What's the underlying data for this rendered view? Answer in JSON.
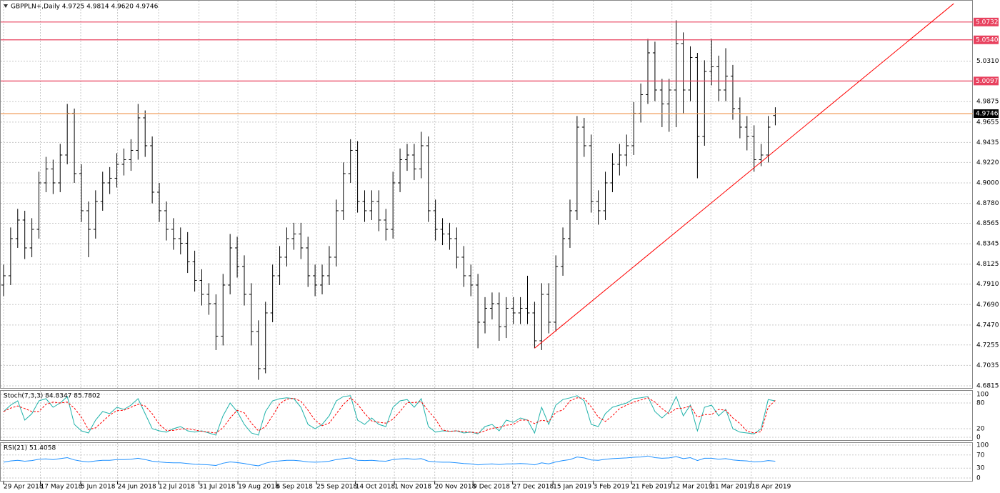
{
  "chart_data": [
    {
      "type": "ohlc",
      "title": "GBPPLN+,Daily  4.9725 4.9814 4.9620 4.9746",
      "color": "#000000",
      "xlim": [
        -0.5,
        136.9
      ],
      "ylim": [
        4.6792,
        5.0969
      ],
      "xticks": [
        {
          "value": 0,
          "label": "29 Apr 2018"
        },
        {
          "value": 5.2,
          "label": "17 May 2018"
        },
        {
          "value": 10.9,
          "label": "5 Jun 2018"
        },
        {
          "value": 16.1,
          "label": "24 Jun 2018"
        },
        {
          "value": 21.9,
          "label": "12 Jul 2018"
        },
        {
          "value": 27.6,
          "label": "31 Jul 2018"
        },
        {
          "value": 33.1,
          "label": "19 Aug 2018"
        },
        {
          "value": 38.5,
          "label": "6 Sep 2018"
        },
        {
          "value": 44.2,
          "label": "25 Sep 2018"
        },
        {
          "value": 49.7,
          "label": "14 Oct 2018"
        },
        {
          "value": 55.2,
          "label": "1 Nov 2018"
        },
        {
          "value": 60.9,
          "label": "20 Nov 2018"
        },
        {
          "value": 66.3,
          "label": "9 Dec 2018"
        },
        {
          "value": 71.9,
          "label": "27 Dec 2018"
        },
        {
          "value": 77.6,
          "label": "15 Jan 2019"
        },
        {
          "value": 83.3,
          "label": "3 Feb 2019"
        },
        {
          "value": 88.7,
          "label": "21 Feb 2019"
        },
        {
          "value": 94.4,
          "label": "12 Mar 2019"
        },
        {
          "value": 99.9,
          "label": "31 Mar 2019"
        },
        {
          "value": 105.6,
          "label": "18 Apr 2019"
        }
      ],
      "yticks": [
        {
          "value": 5.031,
          "label": "5.0310"
        },
        {
          "value": 4.9875,
          "label": "4.9875"
        },
        {
          "value": 4.9655,
          "label": "4.9655"
        },
        {
          "value": 4.9435,
          "label": "4.9435"
        },
        {
          "value": 4.922,
          "label": "4.9220"
        },
        {
          "value": 4.9,
          "label": "4.9000"
        },
        {
          "value": 4.878,
          "label": "4.8780"
        },
        {
          "value": 4.8565,
          "label": "4.8565"
        },
        {
          "value": 4.8345,
          "label": "4.8345"
        },
        {
          "value": 4.8125,
          "label": "4.8125"
        },
        {
          "value": 4.791,
          "label": "4.7910"
        },
        {
          "value": 4.769,
          "label": "4.7690"
        },
        {
          "value": 4.747,
          "label": "4.7470"
        },
        {
          "value": 4.7255,
          "label": "4.7255"
        },
        {
          "value": 4.7035,
          "label": "4.7035"
        },
        {
          "value": 4.6815,
          "label": "4.6815"
        }
      ],
      "grid": true,
      "open": [
        4.79,
        4.8,
        4.84,
        4.86,
        4.83,
        4.85,
        4.9,
        4.915,
        4.9,
        4.93,
        4.975,
        4.91,
        4.87,
        4.85,
        4.88,
        4.9,
        4.905,
        4.92,
        4.925,
        4.935,
        4.97,
        4.94,
        4.89,
        4.87,
        4.85,
        4.84,
        4.835,
        4.815,
        4.795,
        4.78,
        4.77,
        4.735,
        4.79,
        4.83,
        4.81,
        4.78,
        4.74,
        4.7,
        4.76,
        4.8,
        4.82,
        4.84,
        4.845,
        4.83,
        4.8,
        4.79,
        4.8,
        4.82,
        4.87,
        4.91,
        4.935,
        4.88,
        4.87,
        4.88,
        4.86,
        4.85,
        4.9,
        4.925,
        4.93,
        4.915,
        4.94,
        4.87,
        4.85,
        4.845,
        4.84,
        4.82,
        4.8,
        4.79,
        4.75,
        4.765,
        4.77,
        4.745,
        4.765,
        4.76,
        4.765,
        4.76,
        4.73,
        4.78,
        4.75,
        4.81,
        4.84,
        4.87,
        4.96,
        4.94,
        4.88,
        4.87,
        4.9,
        4.92,
        4.93,
        4.94,
        4.975,
        4.995,
        5.04,
        5.0,
        4.985,
        5.0,
        5.05,
        5.0,
        5.035,
        4.95,
        5.02,
        5.025,
        5.0,
        5.015,
        4.98,
        4.96,
        4.95,
        4.925,
        4.93,
        4.9725
      ],
      "high": [
        4.812,
        4.852,
        4.872,
        4.87,
        4.862,
        4.912,
        4.928,
        4.925,
        4.942,
        4.985,
        4.98,
        4.92,
        4.88,
        4.892,
        4.912,
        4.917,
        4.932,
        4.937,
        4.947,
        4.985,
        4.978,
        4.95,
        4.9,
        4.88,
        4.862,
        4.852,
        4.847,
        4.827,
        4.807,
        4.792,
        4.78,
        4.802,
        4.845,
        4.842,
        4.822,
        4.792,
        4.752,
        4.772,
        4.812,
        4.832,
        4.852,
        4.857,
        4.857,
        4.842,
        4.812,
        4.812,
        4.832,
        4.882,
        4.922,
        4.947,
        4.945,
        4.892,
        4.892,
        4.892,
        4.872,
        4.912,
        4.937,
        4.942,
        4.942,
        4.955,
        4.95,
        4.882,
        4.862,
        4.857,
        4.852,
        4.832,
        4.812,
        4.802,
        4.777,
        4.782,
        4.782,
        4.777,
        4.777,
        4.777,
        4.8,
        4.772,
        4.792,
        4.792,
        4.822,
        4.852,
        4.882,
        4.972,
        4.97,
        4.952,
        4.892,
        4.912,
        4.932,
        4.942,
        4.952,
        4.987,
        5.007,
        5.055,
        5.052,
        5.012,
        5.012,
        5.075,
        5.062,
        5.047,
        5.04,
        5.032,
        5.055,
        5.037,
        5.045,
        5.027,
        4.992,
        4.972,
        4.962,
        4.942,
        4.972,
        4.9814
      ],
      "low": [
        4.778,
        4.79,
        4.83,
        4.818,
        4.82,
        4.84,
        4.89,
        4.888,
        4.89,
        4.92,
        4.9,
        4.858,
        4.82,
        4.84,
        4.87,
        4.888,
        4.895,
        4.908,
        4.913,
        4.925,
        4.928,
        4.878,
        4.858,
        4.838,
        4.828,
        4.823,
        4.803,
        4.783,
        4.768,
        4.758,
        4.72,
        4.725,
        4.78,
        4.798,
        4.768,
        4.725,
        4.688,
        4.695,
        4.75,
        4.79,
        4.81,
        4.828,
        4.818,
        4.788,
        4.778,
        4.78,
        4.79,
        4.81,
        4.86,
        4.9,
        4.868,
        4.858,
        4.86,
        4.848,
        4.838,
        4.84,
        4.89,
        4.913,
        4.903,
        4.905,
        4.858,
        4.838,
        4.833,
        4.828,
        4.808,
        4.788,
        4.778,
        4.722,
        4.738,
        4.753,
        4.73,
        4.733,
        4.748,
        4.748,
        4.748,
        4.722,
        4.72,
        4.738,
        4.74,
        4.8,
        4.83,
        4.86,
        4.928,
        4.868,
        4.855,
        4.86,
        4.89,
        4.908,
        4.918,
        4.93,
        4.965,
        4.985,
        4.988,
        4.96,
        4.955,
        4.96,
        4.975,
        4.988,
        4.905,
        4.94,
        5.005,
        4.988,
        4.988,
        4.968,
        4.948,
        4.935,
        4.912,
        4.918,
        4.922,
        4.962
      ],
      "close": [
        4.8,
        4.84,
        4.86,
        4.83,
        4.85,
        4.9,
        4.915,
        4.9,
        4.93,
        4.975,
        4.91,
        4.87,
        4.85,
        4.88,
        4.9,
        4.905,
        4.92,
        4.925,
        4.935,
        4.97,
        4.94,
        4.89,
        4.87,
        4.85,
        4.84,
        4.835,
        4.815,
        4.795,
        4.78,
        4.77,
        4.735,
        4.79,
        4.83,
        4.81,
        4.78,
        4.74,
        4.7,
        4.76,
        4.8,
        4.82,
        4.84,
        4.845,
        4.83,
        4.8,
        4.79,
        4.8,
        4.82,
        4.87,
        4.91,
        4.935,
        4.88,
        4.87,
        4.88,
        4.86,
        4.85,
        4.9,
        4.925,
        4.93,
        4.915,
        4.94,
        4.87,
        4.85,
        4.845,
        4.84,
        4.82,
        4.8,
        4.79,
        4.75,
        4.765,
        4.77,
        4.745,
        4.765,
        4.76,
        4.765,
        4.76,
        4.73,
        4.78,
        4.75,
        4.81,
        4.84,
        4.87,
        4.96,
        4.94,
        4.88,
        4.87,
        4.9,
        4.92,
        4.93,
        4.94,
        4.975,
        4.995,
        5.04,
        5.0,
        4.985,
        5.0,
        5.05,
        5.0,
        5.035,
        4.95,
        5.02,
        5.025,
        5.0,
        5.015,
        4.98,
        4.96,
        4.95,
        4.925,
        4.93,
        4.96,
        4.9746
      ],
      "levels": [
        {
          "value": 5.0732,
          "color": "#e8415e"
        },
        {
          "value": 5.054,
          "label": "5.0540",
          "color": "#e8415e"
        },
        {
          "value": 5.0097,
          "color": "#e8415e"
        },
        {
          "value": 4.9746,
          "color": "#f0a060",
          "label_color": "#000000"
        }
      ],
      "trendline": {
        "x": [
          75,
          134.2
        ],
        "values": [
          4.722,
          5.093
        ],
        "color": "#ff0000"
      }
    },
    {
      "type": "line",
      "title": "Stoch(7,3,3) 84.8347 85.7802",
      "ylim": [
        -6.7,
        110
      ],
      "yticks": [
        0,
        20,
        80,
        100
      ],
      "series": [
        {
          "name": "%K",
          "color": "#20b2aa",
          "values": [
            60,
            75,
            85,
            40,
            55,
            85,
            90,
            70,
            80,
            95,
            30,
            15,
            10,
            40,
            60,
            55,
            70,
            65,
            75,
            90,
            55,
            20,
            15,
            12,
            20,
            25,
            15,
            12,
            15,
            10,
            5,
            50,
            80,
            60,
            30,
            10,
            5,
            60,
            85,
            90,
            92,
            90,
            70,
            30,
            20,
            30,
            50,
            85,
            95,
            97,
            40,
            30,
            45,
            30,
            25,
            70,
            85,
            88,
            70,
            90,
            25,
            12,
            15,
            14,
            15,
            10,
            12,
            8,
            25,
            30,
            15,
            40,
            35,
            45,
            40,
            10,
            70,
            30,
            75,
            88,
            92,
            97,
            85,
            30,
            25,
            55,
            70,
            75,
            80,
            90,
            92,
            95,
            60,
            45,
            60,
            95,
            50,
            75,
            15,
            70,
            75,
            50,
            65,
            20,
            12,
            10,
            8,
            20,
            88,
            85
          ]
        },
        {
          "name": "%D",
          "color": "#ff0000",
          "dashed": true,
          "values": [
            60,
            68,
            73,
            67,
            60,
            60,
            77,
            82,
            80,
            82,
            68,
            47,
            18,
            22,
            37,
            52,
            62,
            63,
            70,
            77,
            73,
            55,
            30,
            16,
            16,
            19,
            20,
            17,
            14,
            12,
            10,
            22,
            45,
            63,
            57,
            33,
            15,
            25,
            50,
            78,
            89,
            91,
            84,
            63,
            40,
            27,
            33,
            55,
            77,
            92,
            77,
            56,
            38,
            35,
            33,
            42,
            60,
            81,
            81,
            83,
            62,
            42,
            17,
            14,
            15,
            13,
            12,
            10,
            15,
            21,
            23,
            28,
            30,
            40,
            40,
            32,
            40,
            37,
            58,
            64,
            85,
            92,
            91,
            71,
            47,
            37,
            50,
            67,
            75,
            82,
            87,
            92,
            82,
            67,
            55,
            67,
            68,
            73,
            47,
            53,
            53,
            65,
            63,
            45,
            32,
            14,
            10,
            13,
            70,
            86
          ]
        }
      ]
    },
    {
      "type": "line",
      "title": "RSI(21) 51.4058",
      "ylim": [
        -8.7,
        108.7
      ],
      "yticks": [
        0,
        30,
        70,
        100
      ],
      "series": [
        {
          "name": "RSI",
          "color": "#1e90ff",
          "values": [
            48,
            52,
            54,
            51,
            53,
            57,
            58,
            56,
            59,
            62,
            55,
            51,
            49,
            52,
            54,
            54,
            56,
            56,
            57,
            60,
            56,
            51,
            49,
            47,
            46,
            46,
            44,
            42,
            41,
            40,
            38,
            45,
            49,
            47,
            44,
            40,
            37,
            45,
            50,
            52,
            54,
            54,
            52,
            49,
            48,
            49,
            51,
            56,
            59,
            61,
            54,
            53,
            54,
            52,
            51,
            56,
            58,
            59,
            57,
            59,
            51,
            49,
            48,
            48,
            46,
            44,
            43,
            40,
            42,
            43,
            41,
            43,
            43,
            44,
            43,
            40,
            46,
            43,
            49,
            53,
            56,
            64,
            61,
            55,
            54,
            57,
            59,
            60,
            61,
            63,
            64,
            67,
            62,
            60,
            61,
            65,
            59,
            62,
            53,
            60,
            60,
            57,
            59,
            55,
            53,
            52,
            49,
            50,
            53,
            51
          ]
        }
      ]
    }
  ]
}
